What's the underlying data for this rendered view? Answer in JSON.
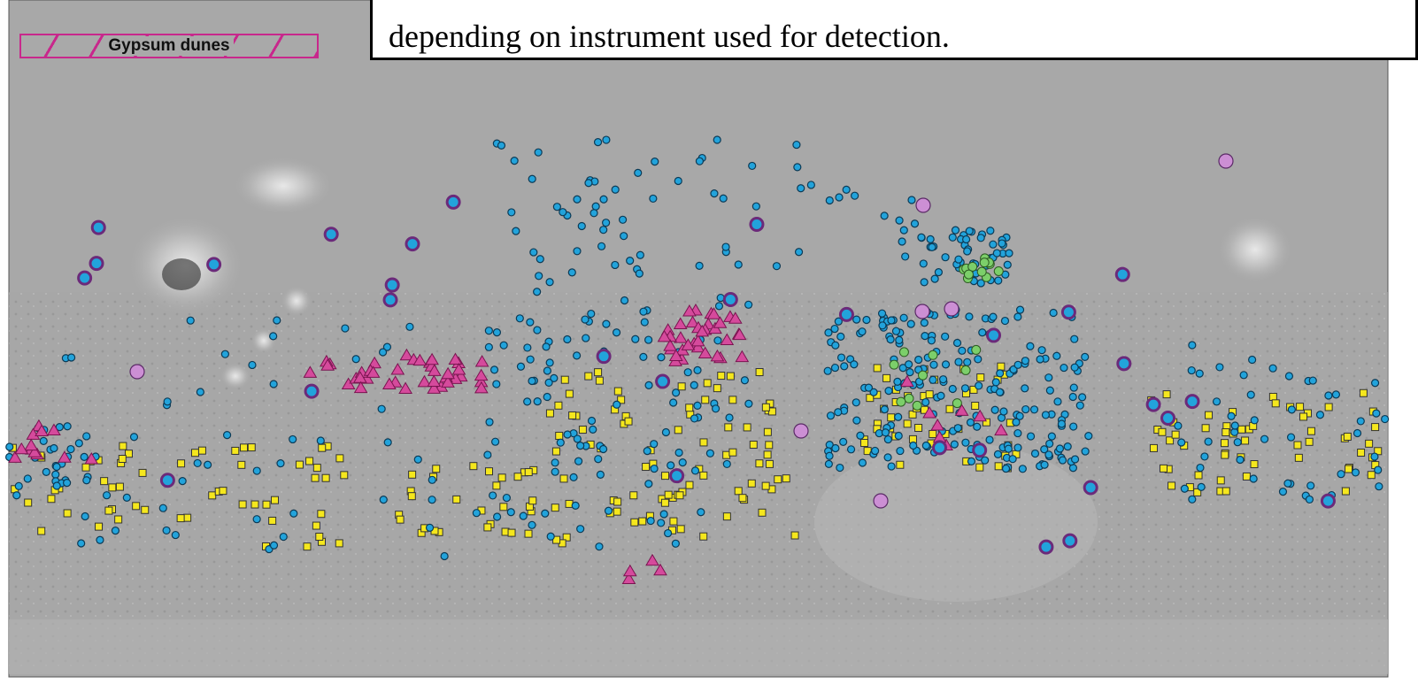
{
  "legend": {
    "label": "Gypsum dunes"
  },
  "caption": {
    "text": "depending on instrument used for detection."
  }
}
